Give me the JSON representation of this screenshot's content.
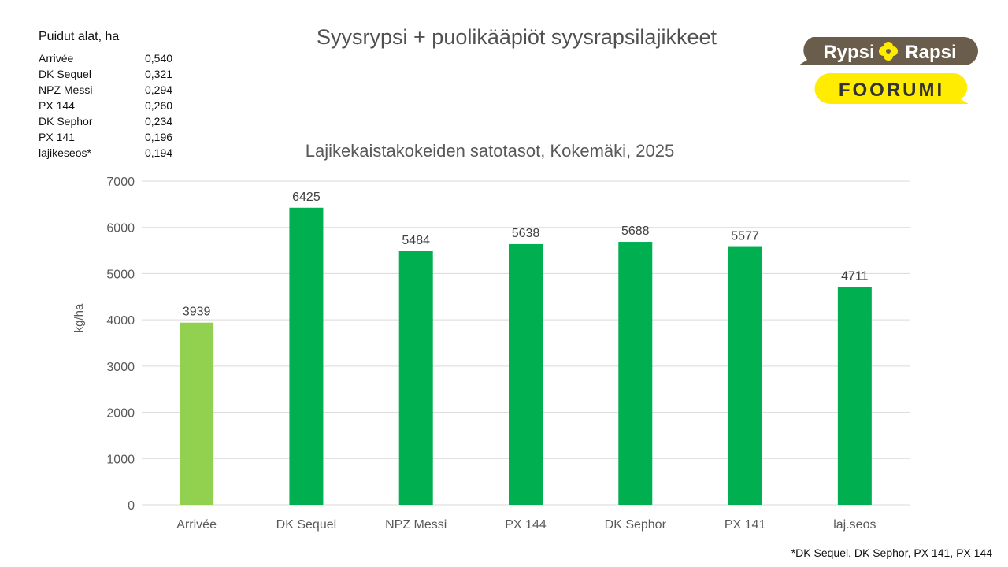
{
  "slide_title": "Syysrypsi + puolikääpiöt syysrapsilajikkeet",
  "side_table": {
    "title": "Puidut alat, ha",
    "rows": [
      {
        "name": "Arrivée",
        "value": "0,540"
      },
      {
        "name": "DK Sequel",
        "value": "0,321"
      },
      {
        "name": "NPZ Messi",
        "value": "0,294"
      },
      {
        "name": "PX 144",
        "value": "0,260"
      },
      {
        "name": "DK Sephor",
        "value": "0,234"
      },
      {
        "name": "PX 141",
        "value": "0,196"
      },
      {
        "name": "lajikeseos*",
        "value": "0,194"
      }
    ]
  },
  "logo": {
    "word1": "Rypsi",
    "word2": "Rapsi",
    "word3": "FOORUMI",
    "colors": {
      "brown": "#6b5d4b",
      "yellow": "#ffec00",
      "white": "#ffffff",
      "dark": "#333333"
    }
  },
  "footnote": "*DK Sequel, DK Sephor, PX 141, PX 144",
  "chart_data": {
    "type": "bar",
    "title": "Lajikekaistakokeiden satotasot, Kokemäki, 2025",
    "xlabel": "",
    "ylabel": "kg/ha",
    "categories": [
      "Arrivée",
      "DK Sequel",
      "NPZ Messi",
      "PX 144",
      "DK Sephor",
      "PX 141",
      "laj.seos"
    ],
    "values": [
      3939,
      6425,
      5484,
      5638,
      5688,
      5577,
      4711
    ],
    "data_labels": [
      "3939",
      "6425",
      "5484",
      "5638",
      "5688",
      "5577",
      "4711"
    ],
    "ylim": [
      0,
      7000
    ],
    "yticks": [
      "0",
      "1000",
      "2000",
      "3000",
      "4000",
      "5000",
      "6000",
      "7000"
    ],
    "grid": true,
    "legend": "none",
    "colors": {
      "first_bar": "#92d050",
      "bars": "#00b050",
      "grid": "#d9d9d9",
      "text": "#404040"
    }
  }
}
